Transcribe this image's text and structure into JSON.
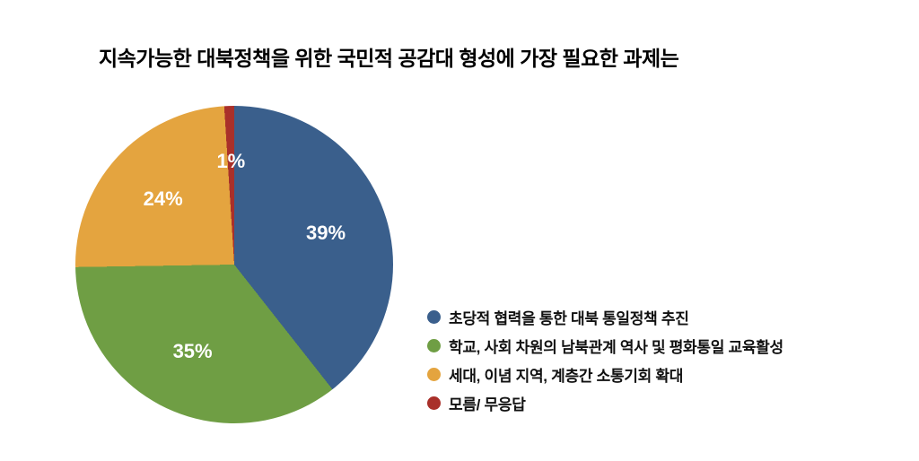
{
  "chart_data": {
    "type": "pie",
    "title": "지속가능한 대북정책을 위한 국민적 공감대 형성에 가장 필요한 과제는",
    "legend_position": "right",
    "start_angle_deg": 0,
    "direction": "clockwise",
    "label_color": "#ffffff",
    "slices": [
      {
        "label": "초당적 협력을 통한 대북 통일정책 추진",
        "value": 39,
        "display": "39%",
        "color": "#3A5F8C"
      },
      {
        "label": "학교, 사회 차원의 남북관계 역사 및 평화통일 교육활성",
        "value": 35,
        "display": "35%",
        "color": "#6F9E44"
      },
      {
        "label": "세대, 이념 지역, 계층간 소통기회 확대",
        "value": 24,
        "display": "24%",
        "color": "#E4A43F"
      },
      {
        "label": "모름/ 무응답",
        "value": 1,
        "display": "1%",
        "color": "#A9302A"
      }
    ]
  }
}
